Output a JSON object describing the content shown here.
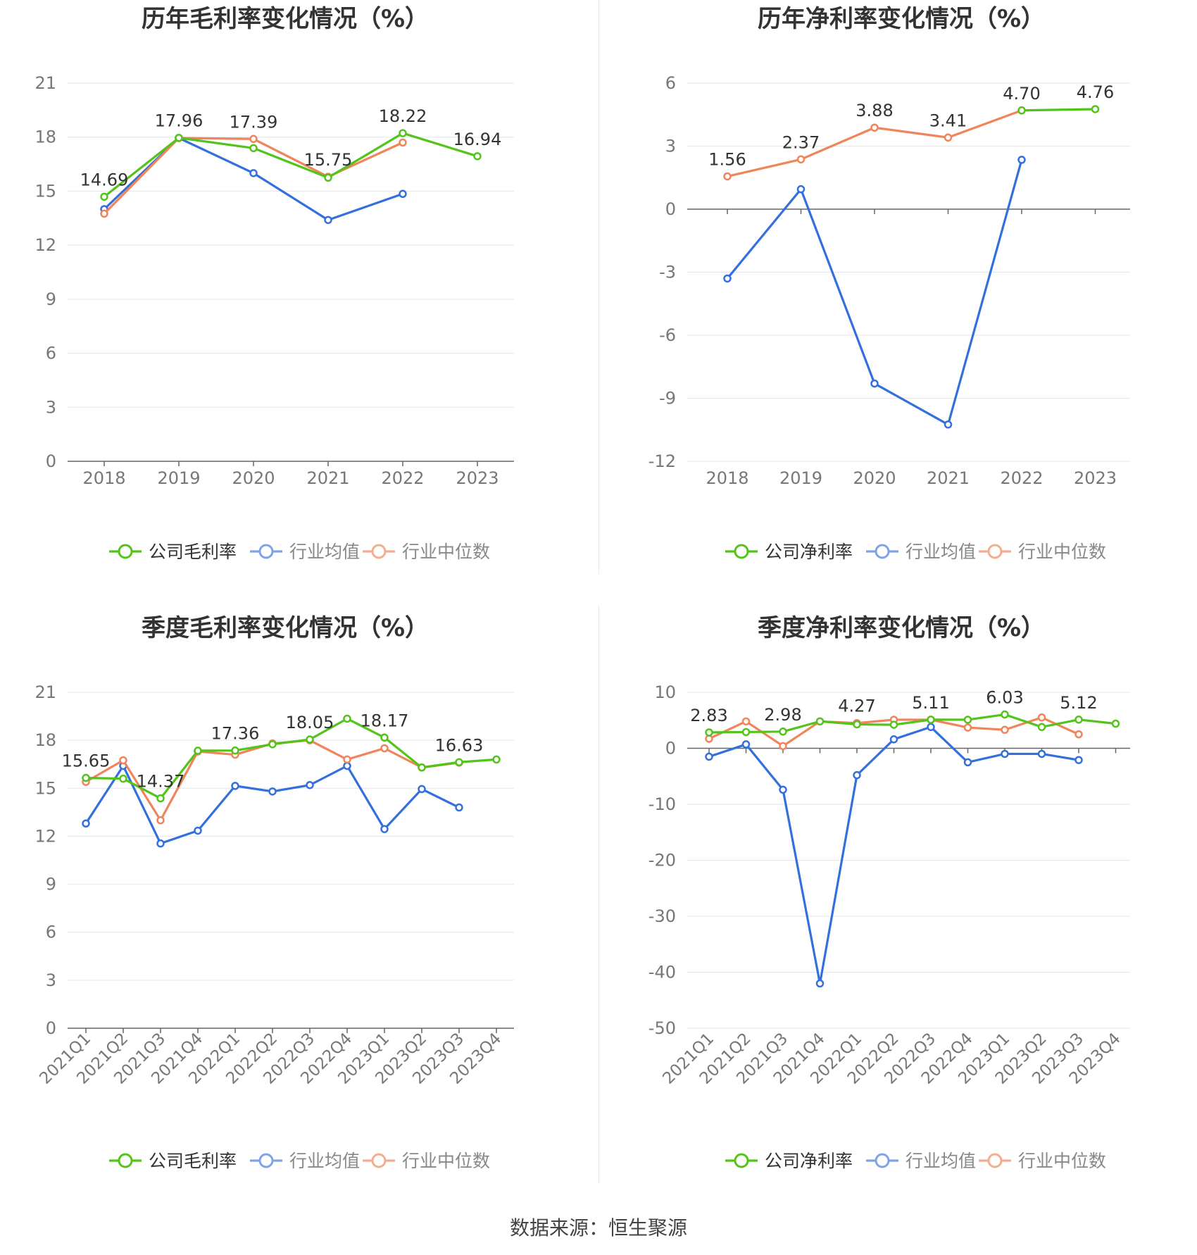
{
  "source": "数据来源：恒生聚源",
  "colors": {
    "company": "#52c41a",
    "avg": "#3470dc",
    "median": "#f0845a",
    "legend_avg": "#7fa3e8",
    "legend_median": "#f5ad91"
  },
  "chart_data": [
    {
      "type": "line",
      "title": "历年毛利率变化情况（%）",
      "categories": [
        "2018",
        "2019",
        "2020",
        "2021",
        "2022",
        "2023"
      ],
      "ylim": [
        0,
        21
      ],
      "yticks": [
        "0",
        "3",
        "6",
        "9",
        "12",
        "15",
        "18",
        "21"
      ],
      "grid": true,
      "legend_position": "bottom",
      "series": [
        {
          "name": "公司毛利率",
          "color_key": "company",
          "values": [
            14.69,
            17.96,
            17.39,
            15.75,
            18.22,
            16.94
          ]
        },
        {
          "name": "行业均值",
          "color_key": "avg",
          "values": [
            14.0,
            17.95,
            16.0,
            13.4,
            14.85,
            null
          ]
        },
        {
          "name": "行业中位数",
          "color_key": "median",
          "values": [
            13.75,
            17.95,
            17.9,
            15.8,
            17.7,
            null
          ]
        }
      ],
      "data_labels": [
        {
          "i": 0,
          "text": "14.69"
        },
        {
          "i": 1,
          "text": "17.96"
        },
        {
          "i": 2,
          "text": "17.39"
        },
        {
          "i": 3,
          "text": "15.75"
        },
        {
          "i": 4,
          "text": "18.22"
        },
        {
          "i": 5,
          "text": "16.94"
        }
      ]
    },
    {
      "type": "line",
      "title": "历年净利率变化情况（%）",
      "categories": [
        "2018",
        "2019",
        "2020",
        "2021",
        "2022",
        "2023"
      ],
      "ylim": [
        -12,
        6
      ],
      "yticks": [
        "-12",
        "-9",
        "-6",
        "-3",
        "0",
        "3",
        "6"
      ],
      "grid": true,
      "zero_axis": true,
      "legend_position": "bottom",
      "series": [
        {
          "name": "公司净利率",
          "color_key": "company",
          "values": [
            null,
            null,
            null,
            null,
            4.7,
            4.76
          ]
        },
        {
          "name": "行业均值",
          "color_key": "avg",
          "values": [
            -3.3,
            0.95,
            -8.3,
            -10.25,
            2.35,
            null
          ]
        },
        {
          "name": "行业中位数",
          "color_key": "median",
          "values": [
            1.56,
            2.37,
            3.88,
            3.41,
            4.7,
            null
          ]
        }
      ],
      "data_labels": [
        {
          "i": 0,
          "text": "1.56"
        },
        {
          "i": 1,
          "text": "2.37"
        },
        {
          "i": 2,
          "text": "3.88"
        },
        {
          "i": 3,
          "text": "3.41"
        },
        {
          "i": 4,
          "text": "4.70"
        },
        {
          "i": 5,
          "text": "4.76"
        }
      ]
    },
    {
      "type": "line",
      "title": "季度毛利率变化情况（%）",
      "categories": [
        "2021Q1",
        "2021Q2",
        "2021Q3",
        "2021Q4",
        "2022Q1",
        "2022Q2",
        "2022Q3",
        "2022Q4",
        "2023Q1",
        "2023Q2",
        "2023Q3",
        "2023Q4"
      ],
      "ylim": [
        0,
        21
      ],
      "yticks": [
        "0",
        "3",
        "6",
        "9",
        "12",
        "15",
        "18",
        "21"
      ],
      "grid": true,
      "legend_position": "bottom",
      "series": [
        {
          "name": "公司毛利率",
          "color_key": "company",
          "values": [
            15.65,
            15.6,
            14.37,
            17.35,
            17.36,
            17.75,
            18.05,
            19.35,
            18.17,
            16.3,
            16.63,
            16.8
          ]
        },
        {
          "name": "行业均值",
          "color_key": "avg",
          "values": [
            12.8,
            16.4,
            11.55,
            12.35,
            15.15,
            14.8,
            15.2,
            16.4,
            12.45,
            14.95,
            13.8,
            null
          ]
        },
        {
          "name": "行业中位数",
          "color_key": "median",
          "values": [
            15.4,
            16.75,
            13.0,
            17.3,
            17.1,
            17.8,
            18.0,
            16.8,
            17.5,
            16.3,
            16.6,
            null
          ]
        }
      ],
      "data_labels": [
        {
          "i": 0,
          "text": "15.65"
        },
        {
          "i": 2,
          "text": "14.37"
        },
        {
          "i": 4,
          "text": "17.36"
        },
        {
          "i": 6,
          "text": "18.05"
        },
        {
          "i": 8,
          "text": "18.17"
        },
        {
          "i": 10,
          "text": "16.63"
        }
      ]
    },
    {
      "type": "line",
      "title": "季度净利率变化情况（%）",
      "categories": [
        "2021Q1",
        "2021Q2",
        "2021Q3",
        "2021Q4",
        "2022Q1",
        "2022Q2",
        "2022Q3",
        "2022Q4",
        "2023Q1",
        "2023Q2",
        "2023Q3",
        "2023Q4"
      ],
      "ylim": [
        -50,
        10
      ],
      "yticks": [
        "-50",
        "-40",
        "-30",
        "-20",
        "-10",
        "0",
        "10"
      ],
      "grid": true,
      "zero_axis": true,
      "legend_position": "bottom",
      "series": [
        {
          "name": "公司净利率",
          "color_key": "company",
          "values": [
            2.83,
            2.9,
            2.98,
            4.8,
            4.27,
            4.2,
            5.11,
            5.1,
            6.03,
            3.8,
            5.12,
            4.4
          ]
        },
        {
          "name": "行业均值",
          "color_key": "avg",
          "values": [
            -1.5,
            0.7,
            -7.4,
            -42.0,
            -4.8,
            1.6,
            3.8,
            -2.5,
            -1.0,
            -1.0,
            -2.1,
            null
          ]
        },
        {
          "name": "行业中位数",
          "color_key": "median",
          "values": [
            1.7,
            4.8,
            0.4,
            4.8,
            4.5,
            5.1,
            5.1,
            3.7,
            3.3,
            5.5,
            2.5,
            null
          ]
        }
      ],
      "data_labels": [
        {
          "i": 0,
          "text": "2.83"
        },
        {
          "i": 2,
          "text": "2.98"
        },
        {
          "i": 4,
          "text": "4.27"
        },
        {
          "i": 6,
          "text": "5.11"
        },
        {
          "i": 8,
          "text": "6.03"
        },
        {
          "i": 10,
          "text": "5.12"
        }
      ]
    }
  ]
}
